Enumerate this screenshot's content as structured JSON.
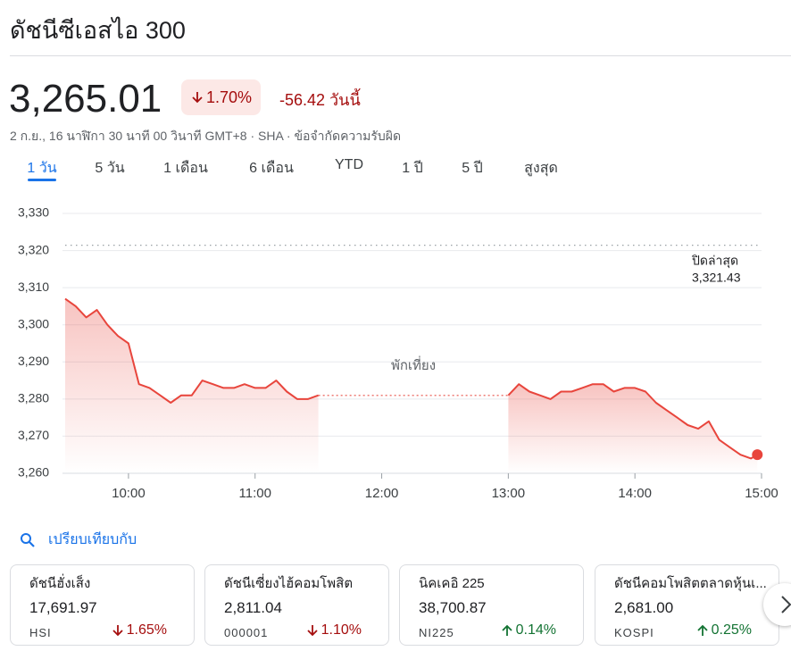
{
  "header": {
    "title": "ดัชนีซีเอสไอ 300"
  },
  "quote": {
    "price": "3,265.01",
    "change_percent": "1.70%",
    "change_direction": "down",
    "change_value": "-56.42 วันนี้",
    "info": "2 ก.ย., 16 นาฬิกา 30 นาที 00 วินาที GMT+8 · SHA · ข้อจำกัดความรับผิด"
  },
  "tabs": {
    "items": [
      "1 วัน",
      "5 วัน",
      "1 เดือน",
      "6 เดือน",
      "YTD",
      "1 ปี",
      "5 ปี",
      "สูงสุด"
    ],
    "selected": 0
  },
  "chart_data": {
    "type": "line",
    "color": "#e8453c",
    "xlim": [
      570,
      900
    ],
    "xticks": [
      {
        "value": 600,
        "label": "10:00"
      },
      {
        "value": 660,
        "label": "11:00"
      },
      {
        "value": 720,
        "label": "12:00"
      },
      {
        "value": 780,
        "label": "13:00"
      },
      {
        "value": 840,
        "label": "14:00"
      },
      {
        "value": 900,
        "label": "15:00"
      }
    ],
    "ylim": [
      3260,
      3330
    ],
    "yticks": [
      {
        "value": 3260,
        "label": "3,260"
      },
      {
        "value": 3270,
        "label": "3,270"
      },
      {
        "value": 3280,
        "label": "3,280"
      },
      {
        "value": 3290,
        "label": "3,290"
      },
      {
        "value": 3300,
        "label": "3,300"
      },
      {
        "value": 3310,
        "label": "3,310"
      },
      {
        "value": 3320,
        "label": "3,320"
      },
      {
        "value": 3330,
        "label": "3,330"
      }
    ],
    "grid": true,
    "series": [
      {
        "x": [
          570,
          575,
          580,
          585,
          590,
          595,
          600,
          605,
          610,
          615,
          620,
          625,
          630,
          635,
          640,
          645,
          650,
          655,
          660,
          665,
          670,
          675,
          680,
          685,
          690
        ],
        "values": [
          3307,
          3305,
          3302,
          3304,
          3300,
          3297,
          3295,
          3284,
          3283,
          3281,
          3279,
          3281,
          3281,
          3285,
          3284,
          3283,
          3283,
          3284,
          3283,
          3283,
          3285,
          3282,
          3280,
          3280,
          3281
        ]
      },
      {
        "x": [
          780,
          785,
          790,
          795,
          800,
          805,
          810,
          815,
          820,
          825,
          830,
          835,
          840,
          845,
          850,
          855,
          860,
          865,
          870,
          875,
          880,
          885,
          890,
          895,
          898
        ],
        "values": [
          3281,
          3284,
          3282,
          3281,
          3280,
          3282,
          3282,
          3283,
          3284,
          3284,
          3282,
          3283,
          3283,
          3282,
          3279,
          3277,
          3275,
          3273,
          3272,
          3274,
          3269,
          3267,
          3265,
          3264,
          3265.01
        ]
      }
    ],
    "previous_close": 3321.43,
    "previous_close_title": "ปิดล่าสุด",
    "previous_close_label": "3,321.43",
    "annotations": [
      {
        "text": "พักเที่ยง"
      }
    ]
  },
  "compare": {
    "title": "เปรียบเทียบกับ",
    "cards": [
      {
        "name": "ดัชนีฮั่งเส็ง",
        "price": "17,691.97",
        "symbol": "HSI",
        "change": "1.65%",
        "direction": "down"
      },
      {
        "name": "ดัชนีเซี่ยงไฮ้คอมโพสิต",
        "price": "2,811.04",
        "symbol": "000001",
        "change": "1.10%",
        "direction": "down"
      },
      {
        "name": "นิคเคอิ 225",
        "price": "38,700.87",
        "symbol": "NI225",
        "change": "0.14%",
        "direction": "up"
      },
      {
        "name": "ดัชนีคอมโพสิตตลาดหุ้นเ...",
        "price": "2,681.00",
        "symbol": "KOSPI",
        "change": "0.25%",
        "direction": "up"
      }
    ]
  }
}
